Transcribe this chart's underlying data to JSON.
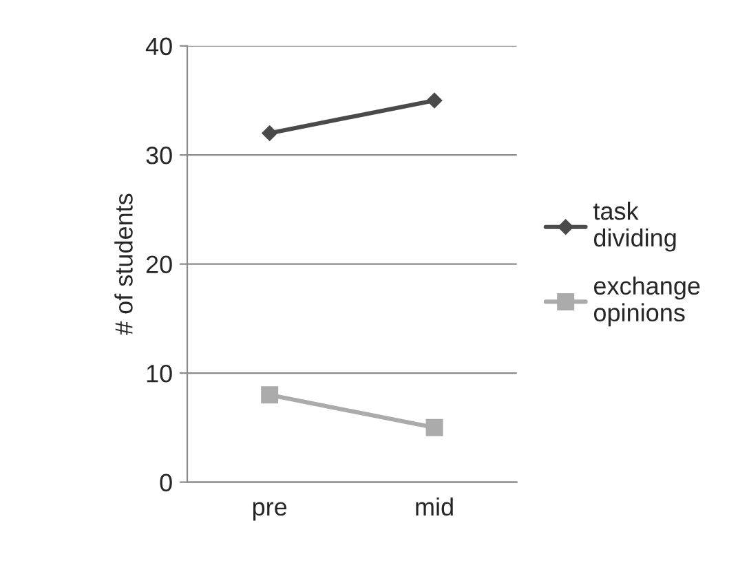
{
  "chart_data": {
    "type": "line",
    "ylabel": "# of students",
    "categories": [
      "pre",
      "mid"
    ],
    "series": [
      {
        "name": "task\ndividing",
        "color": "#4a4a4a",
        "values": [
          32,
          35
        ],
        "marker": "diamond"
      },
      {
        "name": "exchange\nopinions",
        "color": "#ababab",
        "values": [
          8,
          5
        ],
        "marker": "square"
      }
    ],
    "ylim": [
      0,
      40
    ],
    "yticks": [
      0,
      10,
      20,
      30,
      40
    ],
    "grid": "y",
    "legend": "right"
  }
}
